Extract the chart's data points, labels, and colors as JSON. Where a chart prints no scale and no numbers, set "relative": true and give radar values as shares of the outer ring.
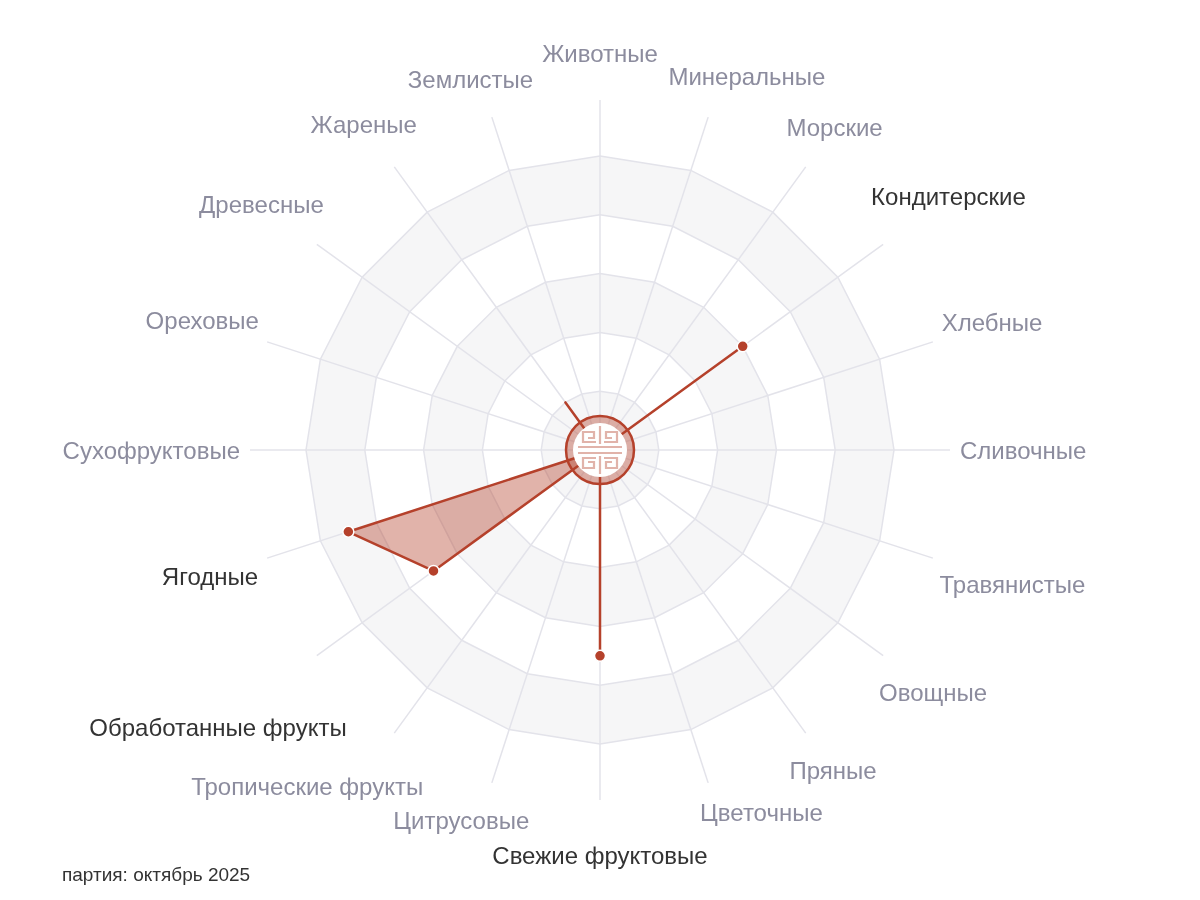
{
  "chart_data": {
    "type": "radar",
    "relative": true,
    "categories": [
      "Животные",
      "Минеральные",
      "Морские",
      "Кондитерские",
      "Хлебные",
      "Сливочные",
      "Травянистые",
      "Овощные",
      "Пряные",
      "Цветочные",
      "Свежие фруктовые",
      "Цитрусовые",
      "Тропические фрукты",
      "Обработанные фрукты",
      "Ягодные",
      "Сухофруктовые",
      "Ореховые",
      "Древесные",
      "Жареные",
      "Землистые"
    ],
    "series": [
      {
        "color": "#b5412b",
        "values": [
          0,
          0,
          0,
          0.6,
          0,
          0,
          0,
          0,
          0,
          0,
          0.7,
          0,
          0,
          0.7,
          0.9,
          0,
          0,
          0,
          0.2,
          0
        ],
        "colors": [
          null,
          null,
          null,
          "#b5412b",
          null,
          null,
          null,
          null,
          null,
          null,
          "#b5412b",
          null,
          null,
          "#b5412b",
          "#b5412b",
          null,
          null,
          null,
          null,
          null
        ]
      }
    ],
    "grid": true,
    "marker": "circle",
    "line_style": "solid",
    "annotations": [
      "партия: октябрь 2025"
    ]
  }
}
